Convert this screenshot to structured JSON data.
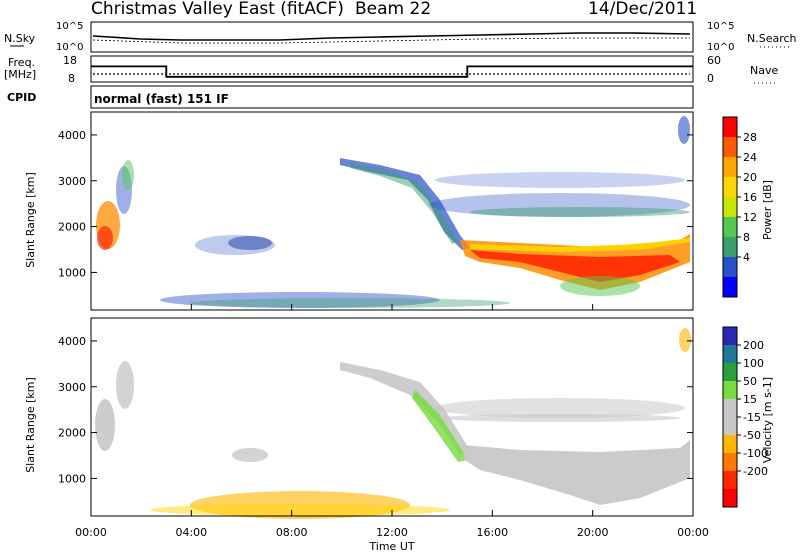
{
  "header": {
    "title": "Christmas Valley East (fitACF)",
    "beam": "Beam 22",
    "date": "14/Dec/2011"
  },
  "noise_panel": {
    "left_label": "N.Sky",
    "left_ticks": [
      "10^5",
      "10^0"
    ],
    "right_ticks": [
      "10^5",
      "10^0"
    ],
    "right_label": "N.Search"
  },
  "freq_panel": {
    "left_label_1": "Freq.",
    "left_label_2": "[MHz]",
    "left_ticks": [
      "18",
      "8"
    ],
    "right_ticks": [
      "60",
      "0"
    ],
    "right_label": "Nave"
  },
  "cpid": {
    "label": "CPID",
    "mode": "normal (fast) 151 IF"
  },
  "power_panel": {
    "ylabel": "Slant Range [km]",
    "colorbar_label": "Power [dB]",
    "colorbar_ticks": [
      "28",
      "24",
      "20",
      "16",
      "12",
      "8",
      "4"
    ],
    "colorbar_colors": [
      "#ff0000",
      "#ff5a00",
      "#ffa500",
      "#ffd700",
      "#c8e600",
      "#55c850",
      "#3c9e6e",
      "#2850c8",
      "#0000ff"
    ]
  },
  "velocity_panel": {
    "ylabel": "Slant Range [km]",
    "colorbar_label": "Velocity [m s-1]",
    "colorbar_ticks": [
      "200",
      "100",
      "50",
      "15",
      "-15",
      "-50",
      "-100",
      "-200"
    ],
    "colorbar_colors": [
      "#2828b4",
      "#1e7896",
      "#28a03c",
      "#78dc3c",
      "#c8c8c8",
      "#c8c8c8",
      "#ffb400",
      "#ff7800",
      "#ff2800",
      "#ff0000"
    ]
  },
  "x_axis": {
    "label": "Time UT",
    "ticks": [
      "00:00",
      "04:00",
      "08:00",
      "12:00",
      "16:00",
      "20:00",
      "00:00"
    ]
  },
  "chart_data": [
    {
      "type": "line",
      "title": "N.Sky / N.Search",
      "y_scale": "log",
      "ylim": [
        "10^0",
        "10^5"
      ]
    },
    {
      "type": "line",
      "title": "Freq. [MHz] / Nave",
      "x_hours": [
        0,
        3.0,
        3.0,
        15.0,
        15.0,
        24
      ],
      "freq_mhz": [
        14,
        14,
        10,
        10,
        14,
        14
      ],
      "ylim": [
        8,
        18
      ]
    },
    {
      "type": "heatmap",
      "title": "Power [dB]",
      "xlabel": "Time UT",
      "ylabel": "Slant Range [km]",
      "xlim_hours": [
        0,
        24
      ],
      "ylim": [
        180,
        4500
      ],
      "y_ticks": [
        1000,
        2000,
        3000,
        4000
      ],
      "color_scale": [
        4,
        8,
        12,
        16,
        20,
        24,
        28
      ]
    },
    {
      "type": "heatmap",
      "title": "Velocity [m s-1]",
      "xlabel": "Time UT",
      "ylabel": "Slant Range [km]",
      "xlim_hours": [
        0,
        24
      ],
      "ylim": [
        180,
        4500
      ],
      "y_ticks": [
        1000,
        2000,
        3000,
        4000
      ],
      "color_scale": [
        -200,
        -100,
        -50,
        -15,
        15,
        50,
        100,
        200
      ]
    }
  ]
}
